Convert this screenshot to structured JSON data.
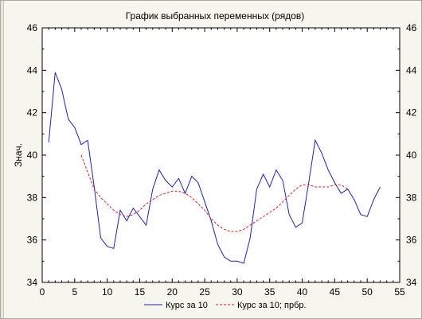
{
  "chart_data": {
    "type": "line",
    "title": "График выбранных переменных (рядов)",
    "ylabel": "Знач.",
    "xlabel": "",
    "xlim": [
      0,
      55
    ],
    "ylim": [
      34,
      46
    ],
    "x_ticks": [
      0,
      5,
      10,
      15,
      20,
      25,
      30,
      35,
      40,
      45,
      50,
      55
    ],
    "y_ticks": [
      34,
      36,
      38,
      40,
      42,
      44,
      46
    ],
    "grid": false,
    "legend_position": "bottom",
    "series": [
      {
        "name": "Курс за 10",
        "color": "#2020c0",
        "style": "solid",
        "x": [
          1,
          2,
          3,
          4,
          5,
          6,
          7,
          8,
          9,
          10,
          11,
          12,
          13,
          14,
          15,
          16,
          17,
          18,
          19,
          20,
          21,
          22,
          23,
          24,
          25,
          26,
          27,
          28,
          29,
          30,
          31,
          32,
          33,
          34,
          35,
          36,
          37,
          38,
          39,
          40,
          41,
          42,
          43,
          44,
          45,
          46,
          47,
          48,
          49,
          50,
          51,
          52
        ],
        "y": [
          40.6,
          43.9,
          43.1,
          41.7,
          41.3,
          40.5,
          40.7,
          38.5,
          36.1,
          35.7,
          35.6,
          37.4,
          36.9,
          37.5,
          37.1,
          36.7,
          38.4,
          39.3,
          38.8,
          38.5,
          38.9,
          38.2,
          39.0,
          38.7,
          37.8,
          36.9,
          35.8,
          35.2,
          35.0,
          35.0,
          34.9,
          36.1,
          38.4,
          39.1,
          38.5,
          39.3,
          38.8,
          37.2,
          36.6,
          36.8,
          38.7,
          40.7,
          40.1,
          39.3,
          38.7,
          38.2,
          38.4,
          37.9,
          37.2,
          37.1,
          37.9,
          38.5
        ]
      },
      {
        "name": "Курс за 10; прбр.",
        "color": "#e02020",
        "style": "dashed",
        "x": [
          6,
          7,
          8,
          9,
          10,
          11,
          12,
          13,
          14,
          15,
          16,
          17,
          18,
          19,
          20,
          21,
          22,
          23,
          24,
          25,
          26,
          27,
          28,
          29,
          30,
          31,
          32,
          33,
          34,
          35,
          36,
          37,
          38,
          39,
          40,
          41,
          42,
          43,
          44,
          45,
          46,
          47
        ],
        "y": [
          40.0,
          39.2,
          38.4,
          38.0,
          37.7,
          37.4,
          37.2,
          37.1,
          37.2,
          37.4,
          37.7,
          37.9,
          38.1,
          38.2,
          38.3,
          38.3,
          38.2,
          38.0,
          37.7,
          37.4,
          37.0,
          36.7,
          36.5,
          36.4,
          36.4,
          36.5,
          36.7,
          36.9,
          37.1,
          37.3,
          37.5,
          37.8,
          38.1,
          38.4,
          38.6,
          38.6,
          38.5,
          38.5,
          38.5,
          38.6,
          38.6,
          38.4
        ]
      }
    ]
  }
}
